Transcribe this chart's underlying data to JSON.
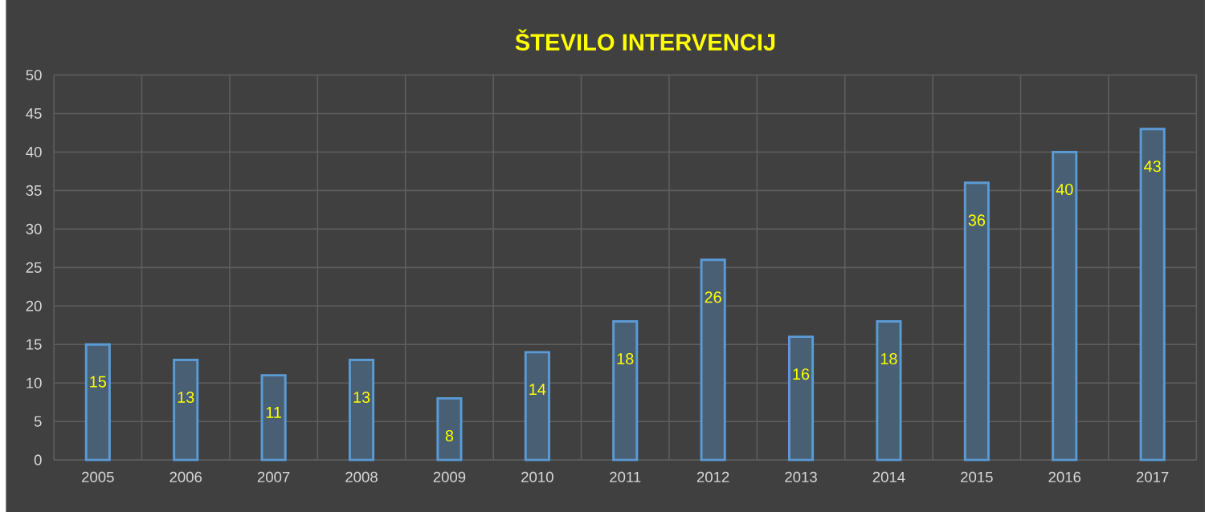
{
  "chart_data": {
    "type": "bar",
    "title": "ŠTEVILO INTERVENCIJ",
    "categories": [
      "2005",
      "2006",
      "2007",
      "2008",
      "2009",
      "2010",
      "2011",
      "2012",
      "2013",
      "2014",
      "2015",
      "2016",
      "2017"
    ],
    "values": [
      15,
      13,
      11,
      13,
      8,
      14,
      18,
      26,
      16,
      18,
      36,
      40,
      43
    ],
    "color": "#5b9bd5",
    "ylim": [
      0,
      50
    ],
    "yticks": [
      0,
      5,
      10,
      15,
      20,
      25,
      30,
      35,
      40,
      45,
      50
    ],
    "grid": true,
    "data_labels": true
  }
}
